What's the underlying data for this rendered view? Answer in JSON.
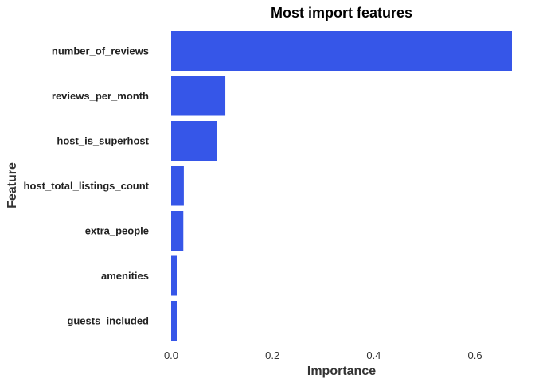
{
  "chart_data": {
    "type": "bar",
    "orientation": "horizontal",
    "title": "Most import features",
    "xlabel": "Importance",
    "ylabel": "Feature",
    "categories": [
      "number_of_reviews",
      "reviews_per_month",
      "host_is_superhost",
      "host_total_listings_count",
      "extra_people",
      "amenities",
      "guests_included"
    ],
    "values": [
      0.673,
      0.107,
      0.091,
      0.025,
      0.024,
      0.011,
      0.011
    ],
    "xlim": [
      0,
      0.673
    ],
    "xticks": [
      "0.0",
      "0.2",
      "0.4",
      "0.6"
    ],
    "xtick_values": [
      0,
      0.2,
      0.4,
      0.6
    ],
    "bar_color": "#3656e8",
    "grid": false,
    "legend": "none"
  }
}
